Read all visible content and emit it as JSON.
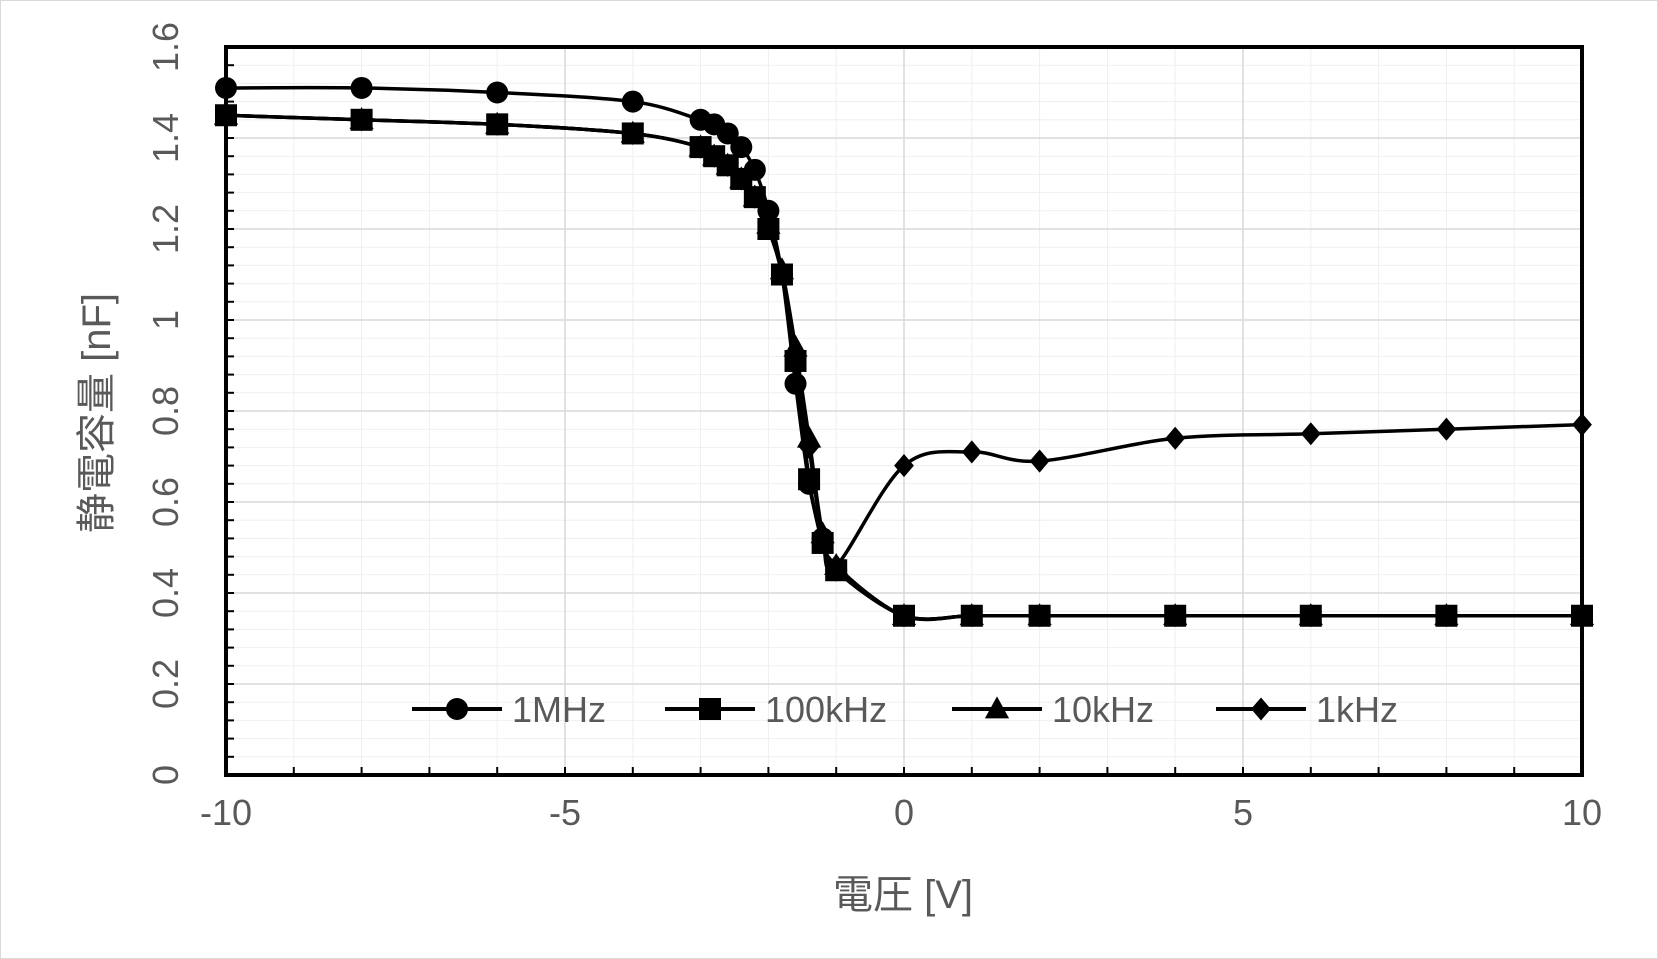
{
  "chart_data": {
    "type": "line",
    "title": "",
    "xlabel": "電圧 [V]",
    "ylabel": "静電容量 [nF]",
    "xlim": [
      -10,
      10
    ],
    "ylim": [
      0,
      1.6
    ],
    "x_major_ticks": [
      -10,
      -5,
      0,
      5,
      10
    ],
    "x_tick_labels": [
      "-10",
      "-5",
      "0",
      "5",
      "10"
    ],
    "y_major_ticks": [
      0,
      0.2,
      0.4,
      0.6,
      0.8,
      1.0,
      1.2,
      1.4,
      1.6
    ],
    "y_tick_labels": [
      "0",
      "0.2",
      "0.4",
      "0.6",
      "0.8",
      "1",
      "1.2",
      "1.4",
      "1.6"
    ],
    "grid": true,
    "legend_position": "bottom-inside",
    "line_color": "#000000",
    "series": [
      {
        "name": "1MHz",
        "marker": "circle",
        "points": [
          [
            -10,
            1.51
          ],
          [
            -8,
            1.51
          ],
          [
            -6,
            1.5
          ],
          [
            -4,
            1.48
          ],
          [
            -3,
            1.44
          ],
          [
            -2.8,
            1.43
          ],
          [
            -2.6,
            1.41
          ],
          [
            -2.4,
            1.38
          ],
          [
            -2.2,
            1.33
          ],
          [
            -2,
            1.24
          ],
          [
            -1.8,
            1.1
          ],
          [
            -1.6,
            0.86
          ],
          [
            -1.4,
            0.64
          ],
          [
            -1.2,
            0.52
          ],
          [
            -1,
            0.45
          ],
          [
            0,
            0.35
          ],
          [
            1,
            0.35
          ],
          [
            2,
            0.35
          ],
          [
            4,
            0.35
          ],
          [
            6,
            0.35
          ],
          [
            8,
            0.35
          ],
          [
            10,
            0.35
          ]
        ]
      },
      {
        "name": "100kHz",
        "marker": "square",
        "points": [
          [
            -10,
            1.45
          ],
          [
            -8,
            1.44
          ],
          [
            -6,
            1.43
          ],
          [
            -4,
            1.41
          ],
          [
            -3,
            1.38
          ],
          [
            -2.8,
            1.36
          ],
          [
            -2.6,
            1.34
          ],
          [
            -2.4,
            1.31
          ],
          [
            -2.2,
            1.27
          ],
          [
            -2,
            1.2
          ],
          [
            -1.8,
            1.1
          ],
          [
            -1.6,
            0.91
          ],
          [
            -1.4,
            0.65
          ],
          [
            -1.2,
            0.51
          ],
          [
            -1,
            0.45
          ],
          [
            0,
            0.35
          ],
          [
            1,
            0.35
          ],
          [
            2,
            0.35
          ],
          [
            4,
            0.35
          ],
          [
            6,
            0.35
          ],
          [
            8,
            0.35
          ],
          [
            10,
            0.35
          ]
        ]
      },
      {
        "name": "10kHz",
        "marker": "triangle",
        "points": [
          [
            -10,
            1.45
          ],
          [
            -8,
            1.44
          ],
          [
            -6,
            1.43
          ],
          [
            -4,
            1.41
          ],
          [
            -3,
            1.38
          ],
          [
            -2.8,
            1.36
          ],
          [
            -2.6,
            1.34
          ],
          [
            -2.4,
            1.31
          ],
          [
            -2.2,
            1.27
          ],
          [
            -2,
            1.21
          ],
          [
            -1.8,
            1.11
          ],
          [
            -1.6,
            0.94
          ],
          [
            -1.4,
            0.74
          ],
          [
            -1.2,
            0.53
          ],
          [
            -1,
            0.46
          ],
          [
            0,
            0.35
          ],
          [
            1,
            0.35
          ],
          [
            2,
            0.35
          ],
          [
            4,
            0.35
          ],
          [
            6,
            0.35
          ],
          [
            8,
            0.35
          ],
          [
            10,
            0.35
          ]
        ]
      },
      {
        "name": "1kHz",
        "marker": "diamond",
        "points": [
          [
            -10,
            1.45
          ],
          [
            -8,
            1.44
          ],
          [
            -6,
            1.43
          ],
          [
            -4,
            1.41
          ],
          [
            -3,
            1.38
          ],
          [
            -2.8,
            1.36
          ],
          [
            -2.6,
            1.34
          ],
          [
            -2.4,
            1.31
          ],
          [
            -2.2,
            1.27
          ],
          [
            -2,
            1.21
          ],
          [
            -1.8,
            1.1
          ],
          [
            -1.6,
            0.92
          ],
          [
            -1.4,
            0.72
          ],
          [
            -1.2,
            0.52
          ],
          [
            -1,
            0.46
          ],
          [
            0,
            0.68
          ],
          [
            1,
            0.71
          ],
          [
            2,
            0.69
          ],
          [
            4,
            0.74
          ],
          [
            6,
            0.75
          ],
          [
            8,
            0.76
          ],
          [
            10,
            0.77
          ]
        ]
      }
    ]
  }
}
